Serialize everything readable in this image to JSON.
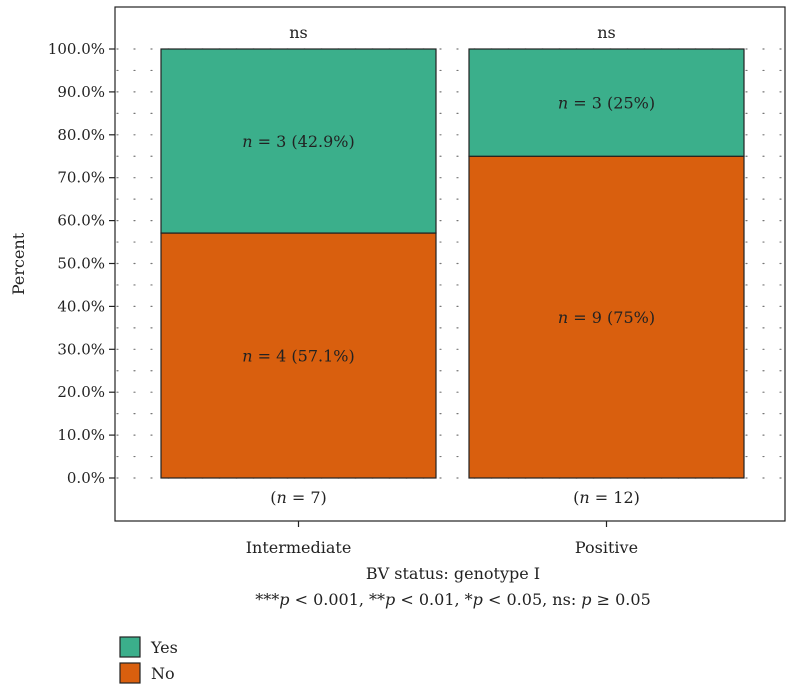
{
  "chart_data": {
    "type": "bar",
    "stacked": true,
    "percent": true,
    "categories": [
      "Intermediate",
      "Positive"
    ],
    "category_totals": [
      "(n = 7)",
      "(n = 12)"
    ],
    "significance": [
      "ns",
      "ns"
    ],
    "series": [
      {
        "name": "No",
        "color": "#D95F0E",
        "values": [
          57.1,
          75
        ],
        "labels": [
          "n = 4 (57.1%)",
          "n = 9 (75%)"
        ]
      },
      {
        "name": "Yes",
        "color": "#3BAF8B",
        "values": [
          42.9,
          25
        ],
        "labels": [
          "n = 3 (42.9%)",
          "n = 3 (25%)"
        ]
      }
    ],
    "ylabel": "Percent",
    "xlabel": "BV status: genotype I",
    "caption": "***p < 0.001, **p < 0.01, *p < 0.05,  ns: p ≥ 0.05",
    "ylim": [
      0,
      100
    ],
    "yticks": [
      "0.0%",
      "10.0%",
      "20.0%",
      "30.0%",
      "40.0%",
      "50.0%",
      "60.0%",
      "70.0%",
      "80.0%",
      "90.0%",
      "100.0%"
    ],
    "legend": {
      "position": "bottom-left",
      "items": [
        {
          "label": "Yes",
          "color": "#3BAF8B"
        },
        {
          "label": "No",
          "color": "#D95F0E"
        }
      ]
    },
    "grid": "dotted"
  }
}
